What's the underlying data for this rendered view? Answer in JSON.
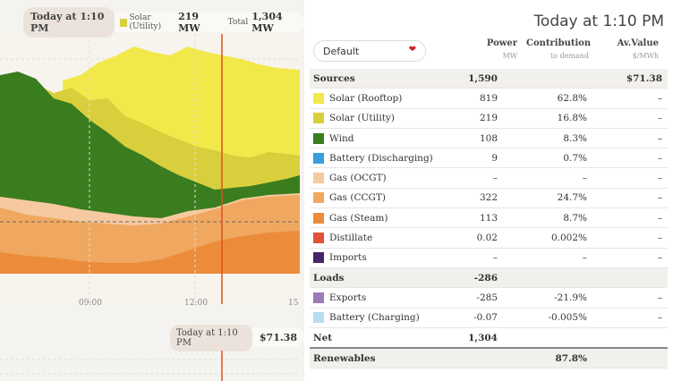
{
  "tooltip": {
    "time": "Today at 1:10 PM",
    "series_label": "Solar (Utility)",
    "series_value": "219 MW",
    "total_label": "Total",
    "total_value": "1,304 MW"
  },
  "x_ticks": [
    "09:00",
    "12:00",
    "15"
  ],
  "price_tooltip": {
    "time": "Today at 1:10 PM",
    "value": "$71.38"
  },
  "panel": {
    "title": "Today at 1:10 PM",
    "select_value": "Default",
    "headers": {
      "power": "Power",
      "power_unit": "MW",
      "contribution": "Contribution",
      "contribution_sub": "to demand",
      "value": "Av.Value",
      "value_unit": "$/MWh"
    }
  },
  "rows": [
    {
      "type": "group",
      "name": "Sources",
      "power": "1,590",
      "contribution": "",
      "value": "$71.38"
    },
    {
      "type": "item",
      "name": "Solar (Rooftop)",
      "color": "#f2e84a",
      "power": "819",
      "contribution": "62.8%",
      "value": "–"
    },
    {
      "type": "item",
      "name": "Solar (Utility)",
      "color": "#d9cf3d",
      "power": "219",
      "contribution": "16.8%",
      "value": "–"
    },
    {
      "type": "item",
      "name": "Wind",
      "color": "#3a7d1e",
      "power": "108",
      "contribution": "8.3%",
      "value": "–"
    },
    {
      "type": "item",
      "name": "Battery (Discharging)",
      "color": "#3b9de0",
      "power": "9",
      "contribution": "0.7%",
      "value": "–"
    },
    {
      "type": "item",
      "name": "Gas (OCGT)",
      "color": "#f6c9a0",
      "power": "–",
      "contribution": "–",
      "value": "–"
    },
    {
      "type": "item",
      "name": "Gas (CCGT)",
      "color": "#f0a860",
      "power": "322",
      "contribution": "24.7%",
      "value": "–"
    },
    {
      "type": "item",
      "name": "Gas (Steam)",
      "color": "#ec8c3a",
      "power": "113",
      "contribution": "8.7%",
      "value": "–"
    },
    {
      "type": "item",
      "name": "Distillate",
      "color": "#e0533a",
      "power": "0.02",
      "contribution": "0.002%",
      "value": "–"
    },
    {
      "type": "item",
      "name": "Imports",
      "color": "#45246a",
      "power": "–",
      "contribution": "–",
      "value": "–"
    },
    {
      "type": "group",
      "name": "Loads",
      "power": "-286",
      "contribution": "",
      "value": ""
    },
    {
      "type": "item",
      "name": "Exports",
      "color": "#9b7bb8",
      "power": "-285",
      "contribution": "-21.9%",
      "value": "–"
    },
    {
      "type": "item",
      "name": "Battery (Charging)",
      "color": "#b7dcf2",
      "power": "-0.07",
      "contribution": "-0.005%",
      "value": "–"
    },
    {
      "type": "net",
      "name": "Net",
      "power": "1,304",
      "contribution": "",
      "value": ""
    },
    {
      "type": "ren",
      "name": "Renewables",
      "power": "",
      "contribution": "87.8%",
      "value": ""
    }
  ]
}
